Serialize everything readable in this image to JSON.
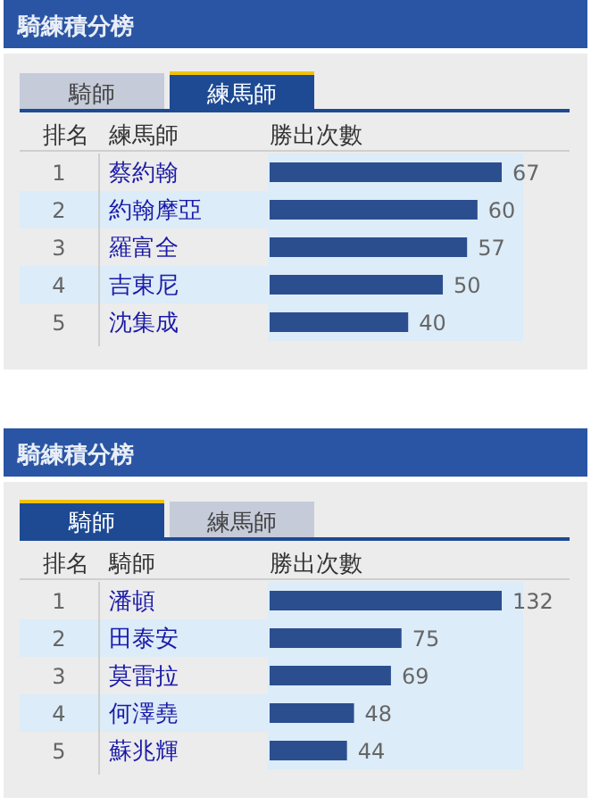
{
  "chart_data": [
    {
      "type": "bar",
      "orientation": "horizontal",
      "title": "騎練積分榜",
      "annotations": [
        "騎師",
        "練馬師",
        "排名",
        "練馬師",
        "勝出次數",
        "1",
        "2",
        "3",
        "4",
        "5"
      ],
      "categories": [
        "蔡約翰",
        "約翰摩亞",
        "羅富全",
        "吉東尼",
        "沈集成"
      ],
      "values": [
        67,
        60,
        57,
        50,
        40
      ],
      "color": "#2b4e8f",
      "data_labels": true
    },
    {
      "type": "bar",
      "orientation": "horizontal",
      "title": "騎練積分榜",
      "annotations": [
        "騎師",
        "練馬師",
        "排名",
        "騎師",
        "勝出次數",
        "1",
        "2",
        "3",
        "4",
        "5"
      ],
      "categories": [
        "潘頓",
        "田泰安",
        "莫雷拉",
        "何澤堯",
        "蘇兆輝"
      ],
      "values": [
        132,
        75,
        69,
        48,
        44
      ],
      "color": "#2b4e8f",
      "data_labels": true
    }
  ]
}
